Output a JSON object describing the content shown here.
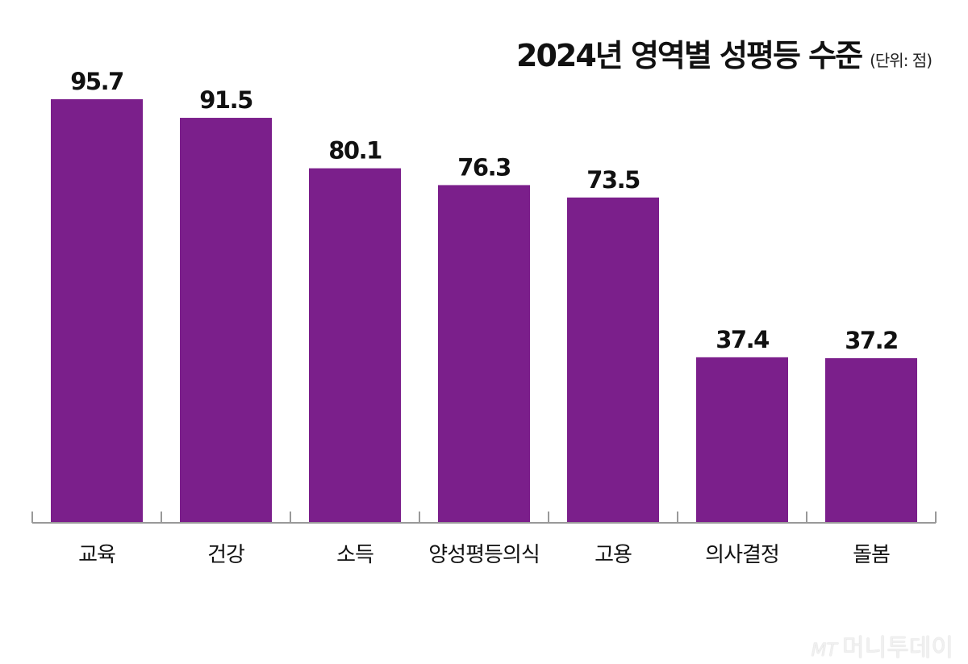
{
  "chart_data": {
    "type": "bar",
    "title": "2024년 영역별 성평등 수준",
    "unit": "(단위: 점)",
    "categories": [
      "교육",
      "건강",
      "소득",
      "양성평등의식",
      "고용",
      "의사결정",
      "돌봄"
    ],
    "values": [
      95.7,
      91.5,
      80.1,
      76.3,
      73.5,
      37.4,
      37.2
    ],
    "ylim": [
      0,
      100
    ],
    "grid": false,
    "bar_color": "#7b1f8b",
    "axis_color": "#999999"
  },
  "watermark": {
    "logo": "MT",
    "text": "머니투데이"
  }
}
